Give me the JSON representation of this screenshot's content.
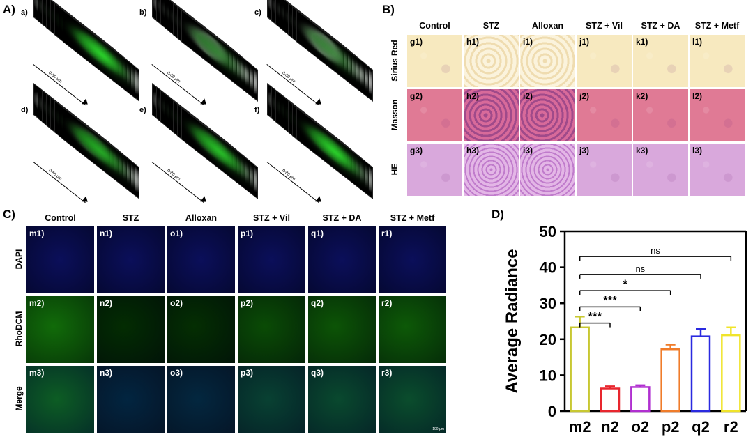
{
  "panelA": {
    "letter": "A)",
    "subpanels": [
      {
        "label": "a)",
        "arrow_text": "0-80 μm",
        "glow": "#2bd62b",
        "glow_strength": 0.9
      },
      {
        "label": "b)",
        "arrow_text": "0-80 μm",
        "glow": "#1f7a1f",
        "glow_strength": 0.35
      },
      {
        "label": "c)",
        "arrow_text": "0-80 μm",
        "glow": "#1f7a1f",
        "glow_strength": 0.3
      },
      {
        "label": "d)",
        "arrow_text": "0-80 μm",
        "glow": "#22b022",
        "glow_strength": 0.6
      },
      {
        "label": "e)",
        "arrow_text": "0-80 μm",
        "glow": "#28c428",
        "glow_strength": 0.75
      },
      {
        "label": "f)",
        "arrow_text": "0-80 μm",
        "glow": "#2bd62b",
        "glow_strength": 0.85
      }
    ]
  },
  "panelB": {
    "letter": "B)",
    "columns": [
      "Control",
      "STZ",
      "Alloxan",
      "STZ + Vil",
      "STZ + DA",
      "STZ + Metf"
    ],
    "rows": [
      {
        "name": "Sirius Red",
        "labels": [
          "g1)",
          "h1)",
          "i1)",
          "j1)",
          "k1)",
          "l1)"
        ],
        "color": "#f7e9bf"
      },
      {
        "name": "Masson",
        "labels": [
          "g2)",
          "h2)",
          "i2)",
          "j2)",
          "k2)",
          "l2)"
        ],
        "color": "#e07a95"
      },
      {
        "name": "HE",
        "labels": [
          "g3)",
          "h3)",
          "i3)",
          "j3)",
          "k3)",
          "l3)"
        ],
        "color": "#d9a8dc"
      }
    ]
  },
  "panelC": {
    "letter": "C)",
    "columns": [
      "Control",
      "STZ",
      "Alloxan",
      "STZ + Vil",
      "STZ + DA",
      "STZ + Metf"
    ],
    "rows": [
      {
        "name": "DAPI",
        "labels": [
          "m1)",
          "n1)",
          "o1)",
          "p1)",
          "q1)",
          "r1)"
        ]
      },
      {
        "name": "RhoDCM",
        "labels": [
          "m2)",
          "n2)",
          "o2)",
          "p2)",
          "q2)",
          "r2)"
        ]
      },
      {
        "name": "Merge",
        "labels": [
          "m3)",
          "n3)",
          "o3)",
          "p3)",
          "q3)",
          "r3)"
        ]
      }
    ],
    "scalebar_text": "100 μm"
  },
  "panelD": {
    "letter": "D)",
    "chart_data": {
      "type": "bar",
      "categories": [
        "m2",
        "n2",
        "o2",
        "p2",
        "q2",
        "r2"
      ],
      "values": [
        23.3,
        6.3,
        6.7,
        17.2,
        20.8,
        21.1
      ],
      "errors": [
        3.0,
        0.6,
        0.5,
        1.3,
        2.1,
        2.2
      ],
      "colors": [
        "#c8c832",
        "#e8262e",
        "#b02fd0",
        "#f07c2a",
        "#2a2ae0",
        "#f0e42a"
      ],
      "ylabel": "Average Radiance",
      "xlabel": "",
      "ylim": [
        0,
        50
      ],
      "yticks": [
        0,
        10,
        20,
        30,
        40,
        50
      ],
      "grid": false,
      "significance": [
        {
          "from": "m2",
          "to": "r2",
          "label": "ns"
        },
        {
          "from": "m2",
          "to": "q2",
          "label": "ns"
        },
        {
          "from": "m2",
          "to": "p2",
          "label": "*"
        },
        {
          "from": "m2",
          "to": "o2",
          "label": "***"
        },
        {
          "from": "m2",
          "to": "n2",
          "label": "***"
        }
      ]
    }
  }
}
